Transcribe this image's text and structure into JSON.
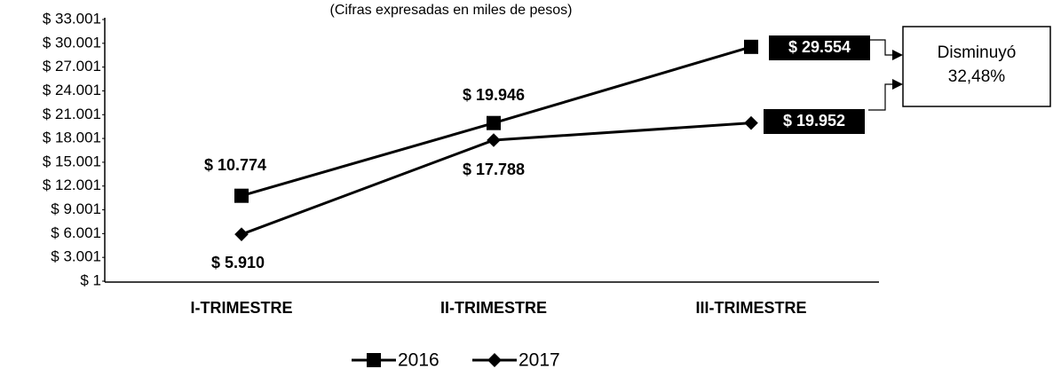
{
  "chart_data": {
    "type": "line",
    "subtitle": "(Cifras expresadas en miles de pesos)",
    "categories": [
      "I-TRIMESTRE",
      "II-TRIMESTRE",
      "III-TRIMESTRE"
    ],
    "series": [
      {
        "name": "2016",
        "color": "#000000",
        "values": [
          10774,
          19946,
          29554
        ],
        "value_labels": [
          "$ 10.774",
          "$ 19.946",
          "$ 29.554"
        ]
      },
      {
        "name": "2017",
        "color": "#000000",
        "values": [
          5910,
          17788,
          19952
        ],
        "value_labels": [
          "$ 5.910",
          "$ 17.788",
          "$ 19.952"
        ]
      }
    ],
    "ylim": [
      1,
      33001
    ],
    "yticks": [
      {
        "value": 1,
        "label": "$ 1"
      },
      {
        "value": 3001,
        "label": "$ 3.001"
      },
      {
        "value": 6001,
        "label": "$ 6.001"
      },
      {
        "value": 9001,
        "label": "$ 9.001"
      },
      {
        "value": 12001,
        "label": "$ 12.001"
      },
      {
        "value": 15001,
        "label": "$ 15.001"
      },
      {
        "value": 18001,
        "label": "$ 18.001"
      },
      {
        "value": 21001,
        "label": "$ 21.001"
      },
      {
        "value": 24001,
        "label": "$ 24.001"
      },
      {
        "value": 27001,
        "label": "$ 27.001"
      },
      {
        "value": 30001,
        "label": "$ 30.001"
      },
      {
        "value": 33001,
        "label": "$ 33.001"
      }
    ],
    "annotation": [
      "Disminuyó",
      "32,48%"
    ],
    "legend": "bottom"
  }
}
